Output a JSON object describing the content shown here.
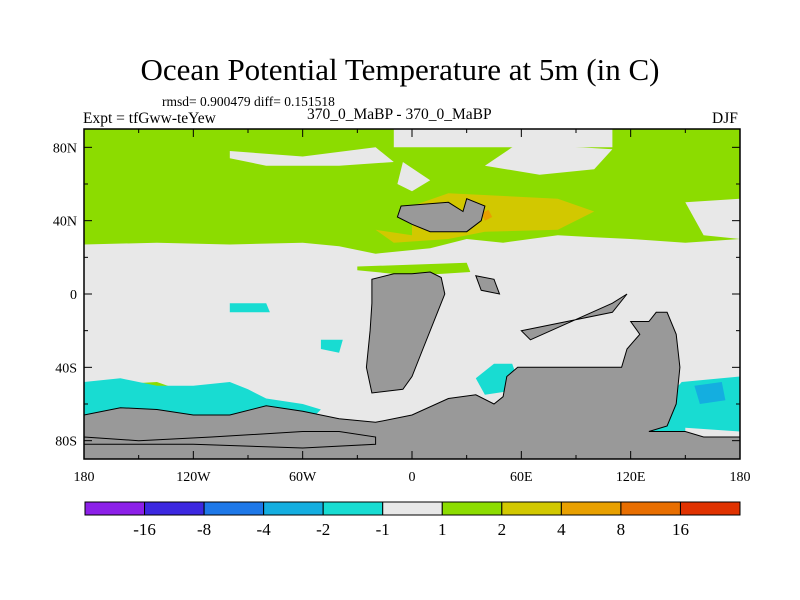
{
  "chart_data": {
    "type": "heatmap",
    "title": "Ocean Potential Temperature at 5m (in C)",
    "stats_text": "rmsd= 0.900479 diff= 0.151518",
    "left_label": "Expt = tfGww-teYew",
    "center_label": "370_0_MaBP - 370_0_MaBP",
    "right_label": "DJF",
    "x_axis": {
      "range": [
        -180,
        180
      ],
      "ticks": [
        {
          "value": -180,
          "label": "180"
        },
        {
          "value": -120,
          "label": "120W"
        },
        {
          "value": -60,
          "label": "60W"
        },
        {
          "value": 0,
          "label": "0"
        },
        {
          "value": 60,
          "label": "60E"
        },
        {
          "value": 120,
          "label": "120E"
        },
        {
          "value": 180,
          "label": "180"
        }
      ]
    },
    "y_axis": {
      "range": [
        -90,
        90
      ],
      "ticks": [
        {
          "value": 80,
          "label": "80N"
        },
        {
          "value": 40,
          "label": "40N"
        },
        {
          "value": 0,
          "label": "0"
        },
        {
          "value": -40,
          "label": "40S"
        },
        {
          "value": -80,
          "label": "80S"
        }
      ]
    },
    "colorbar": {
      "colors": [
        "#8c20e8",
        "#3c28e0",
        "#1e78e8",
        "#14aee0",
        "#18dcd2",
        "#e8e8e8",
        "#8cdc00",
        "#d2c800",
        "#e8a000",
        "#e86e00",
        "#e03200"
      ],
      "labels": [
        "-16",
        "-8",
        "-4",
        "-2",
        "-1",
        "1",
        "2",
        "4",
        "8",
        "16"
      ]
    },
    "land_color": "#999999",
    "regions": [
      {
        "category": "2",
        "color": "#8cdc00",
        "polygons": [
          [
            [
              -180,
              90
            ],
            [
              180,
              90
            ],
            [
              180,
              30
            ],
            [
              150,
              28
            ],
            [
              120,
              30
            ],
            [
              100,
              31
            ],
            [
              80,
              32
            ],
            [
              50,
              28
            ],
            [
              30,
              30
            ],
            [
              10,
              25
            ],
            [
              -20,
              22
            ],
            [
              -40,
              26
            ],
            [
              -60,
              28
            ],
            [
              -100,
              27
            ],
            [
              -140,
              28
            ],
            [
              -180,
              27
            ]
          ],
          [
            [
              -30,
              15
            ],
            [
              30,
              17
            ],
            [
              32,
              12
            ],
            [
              0,
              10
            ],
            [
              -30,
              13
            ]
          ],
          [
            [
              -175,
              -50
            ],
            [
              -140,
              -48
            ],
            [
              -120,
              -55
            ],
            [
              -170,
              -55
            ]
          ]
        ]
      },
      {
        "category": "-1 to 1",
        "color": "#e8e8e8",
        "polygons": [
          [
            [
              -100,
              78
            ],
            [
              -60,
              75
            ],
            [
              -20,
              80
            ],
            [
              -10,
              72
            ],
            [
              -40,
              70
            ],
            [
              -80,
              70
            ],
            [
              -100,
              74
            ]
          ],
          [
            [
              -10,
              90
            ],
            [
              110,
              90
            ],
            [
              110,
              80
            ],
            [
              -10,
              80
            ]
          ],
          [
            [
              -5,
              72
            ],
            [
              10,
              62
            ],
            [
              0,
              56
            ],
            [
              -8,
              60
            ]
          ],
          [
            [
              60,
              82
            ],
            [
              110,
              79
            ],
            [
              100,
              68
            ],
            [
              70,
              65
            ],
            [
              40,
              70
            ],
            [
              55,
              80
            ]
          ],
          [
            [
              150,
              50
            ],
            [
              180,
              52
            ],
            [
              180,
              30
            ],
            [
              160,
              32
            ]
          ]
        ]
      },
      {
        "category": "4",
        "color": "#d2c800",
        "polygons": [
          [
            [
              -20,
              35
            ],
            [
              0,
              32
            ],
            [
              0,
              48
            ],
            [
              20,
              55
            ],
            [
              80,
              52
            ],
            [
              100,
              45
            ],
            [
              80,
              35
            ],
            [
              40,
              34
            ],
            [
              20,
              30
            ],
            [
              -10,
              28
            ]
          ]
        ]
      },
      {
        "category": "8",
        "color": "#e8a000",
        "polygons": [
          [
            [
              38,
              44
            ],
            [
              42,
              46
            ],
            [
              44,
              42
            ],
            [
              40,
              40
            ]
          ]
        ]
      },
      {
        "category": "-2 to -1",
        "color": "#18dcd2",
        "polygons": [
          [
            [
              -180,
              -48
            ],
            [
              -160,
              -46
            ],
            [
              -140,
              -50
            ],
            [
              -120,
              -50
            ],
            [
              -100,
              -48
            ],
            [
              -90,
              -52
            ],
            [
              -80,
              -57
            ],
            [
              -60,
              -60
            ],
            [
              -50,
              -63
            ],
            [
              -60,
              -73
            ],
            [
              -120,
              -75
            ],
            [
              -150,
              -72
            ],
            [
              -180,
              -70
            ]
          ],
          [
            [
              -100,
              -5
            ],
            [
              -80,
              -5
            ],
            [
              -78,
              -10
            ],
            [
              -100,
              -10
            ]
          ],
          [
            [
              -50,
              -25
            ],
            [
              -38,
              -25
            ],
            [
              -40,
              -32
            ],
            [
              -50,
              -30
            ]
          ],
          [
            [
              45,
              -38
            ],
            [
              55,
              -38
            ],
            [
              60,
              -52
            ],
            [
              40,
              -55
            ],
            [
              35,
              -46
            ]
          ],
          [
            [
              148,
              -48
            ],
            [
              180,
              -45
            ],
            [
              180,
              -75
            ],
            [
              150,
              -73
            ],
            [
              130,
              -68
            ]
          ],
          [
            [
              115,
              -65
            ],
            [
              150,
              -65
            ],
            [
              150,
              -78
            ],
            [
              115,
              -78
            ]
          ]
        ]
      },
      {
        "category": "-4 to -2",
        "color": "#14aee0",
        "polygons": [
          [
            [
              155,
              -50
            ],
            [
              170,
              -48
            ],
            [
              172,
              -58
            ],
            [
              158,
              -60
            ]
          ]
        ]
      },
      {
        "category": "land",
        "color": "#999999",
        "polygons": [
          [
            [
              -180,
              -66
            ],
            [
              -160,
              -62
            ],
            [
              -140,
              -63
            ],
            [
              -120,
              -66
            ],
            [
              -100,
              -66
            ],
            [
              -80,
              -61
            ],
            [
              -60,
              -64
            ],
            [
              -40,
              -68
            ],
            [
              -20,
              -70
            ],
            [
              0,
              -66
            ],
            [
              20,
              -57
            ],
            [
              35,
              -55
            ],
            [
              45,
              -60
            ],
            [
              50,
              -56
            ],
            [
              52,
              -45
            ],
            [
              58,
              -40
            ],
            [
              90,
              -40
            ],
            [
              115,
              -40
            ],
            [
              118,
              -30
            ],
            [
              125,
              -22
            ],
            [
              120,
              -15
            ],
            [
              130,
              -15
            ],
            [
              134,
              -10
            ],
            [
              140,
              -10
            ],
            [
              145,
              -22
            ],
            [
              147,
              -40
            ],
            [
              145,
              -60
            ],
            [
              140,
              -72
            ],
            [
              130,
              -75
            ],
            [
              150,
              -75
            ],
            [
              160,
              -78
            ],
            [
              180,
              -78
            ],
            [
              180,
              -90
            ],
            [
              -180,
              -90
            ]
          ],
          [
            [
              -22,
              -54
            ],
            [
              -25,
              -40
            ],
            [
              -23,
              -20
            ],
            [
              -22,
              -5
            ],
            [
              -22,
              8
            ],
            [
              -10,
              11
            ],
            [
              0,
              11
            ],
            [
              10,
              12
            ],
            [
              16,
              9
            ],
            [
              18,
              0
            ],
            [
              14,
              -10
            ],
            [
              6,
              -30
            ],
            [
              0,
              -45
            ],
            [
              -5,
              -52
            ]
          ],
          [
            [
              60,
              -20
            ],
            [
              110,
              -10
            ],
            [
              118,
              0
            ],
            [
              110,
              -5
            ],
            [
              65,
              -25
            ]
          ],
          [
            [
              -6,
              48
            ],
            [
              20,
              50
            ],
            [
              28,
              45
            ],
            [
              30,
              52
            ],
            [
              40,
              48
            ],
            [
              38,
              40
            ],
            [
              30,
              34
            ],
            [
              10,
              34
            ],
            [
              0,
              38
            ],
            [
              -8,
              42
            ]
          ],
          [
            [
              35,
              10
            ],
            [
              45,
              8
            ],
            [
              48,
              0
            ],
            [
              38,
              2
            ]
          ],
          [
            [
              -180,
              -78
            ],
            [
              -150,
              -80
            ],
            [
              -110,
              -78
            ],
            [
              -60,
              -75
            ],
            [
              -40,
              -75
            ],
            [
              -20,
              -78
            ],
            [
              -20,
              -82
            ],
            [
              -60,
              -84
            ],
            [
              -120,
              -82
            ],
            [
              -180,
              -82
            ]
          ]
        ]
      }
    ]
  }
}
